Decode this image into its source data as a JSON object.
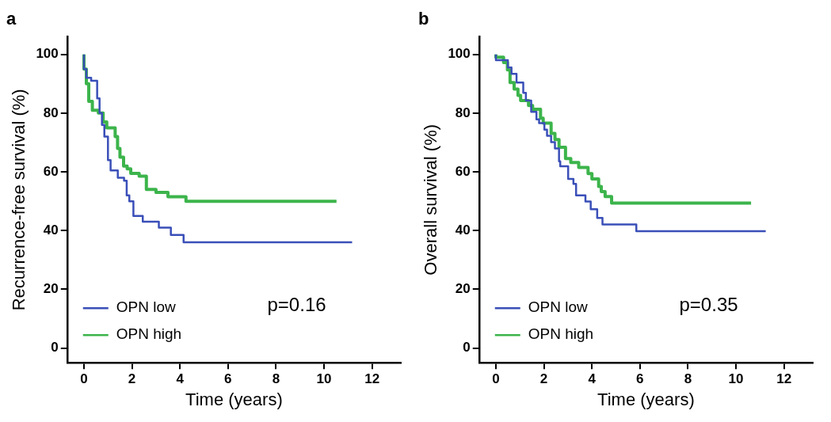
{
  "chart_data": [
    {
      "type": "step",
      "title": "a",
      "xlabel": "Time (years)",
      "ylabel": "Recurrence-free survival (%)",
      "xlim": [
        -0.7,
        13.2
      ],
      "ylim": [
        -5,
        106
      ],
      "xticks": [
        0,
        2,
        4,
        6,
        8,
        10,
        12
      ],
      "yticks": [
        0,
        20,
        40,
        60,
        80,
        100
      ],
      "grid": false,
      "legend": "bottom left",
      "marker": "none",
      "line_style": "solid",
      "annotations": [
        "p=0.16"
      ],
      "series": [
        {
          "name": "OPN low",
          "color": "#3a4fb8",
          "x": [
            0,
            0.1,
            0.3,
            0.55,
            0.65,
            0.75,
            0.85,
            1.0,
            1.11,
            1.41,
            1.67,
            1.78,
            1.89,
            2.06,
            2.45,
            3.12,
            3.62,
            4.15,
            5.94,
            11.17
          ],
          "values": [
            100,
            95,
            92,
            91,
            85,
            80,
            76,
            72,
            64,
            60.5,
            58,
            57,
            52,
            50,
            45,
            43,
            41,
            38.5,
            36,
            36
          ]
        },
        {
          "name": "OPN high",
          "color": "#3cb44b",
          "x": [
            0,
            0.1,
            0.2,
            0.35,
            0.6,
            0.8,
            0.95,
            1.3,
            1.4,
            1.5,
            1.65,
            1.8,
            1.95,
            2.3,
            2.6,
            3.0,
            3.5,
            4.25,
            4.6,
            10.52
          ],
          "values": [
            100,
            95,
            90,
            84,
            81,
            80,
            77,
            75,
            72,
            68,
            65,
            62,
            61,
            59.5,
            58.5,
            54,
            53,
            51.5,
            50,
            50
          ]
        }
      ]
    },
    {
      "type": "step",
      "title": "b",
      "xlabel": "Time (years)",
      "ylabel": "Overall survival (%)",
      "xlim": [
        -0.7,
        13.2
      ],
      "ylim": [
        -5,
        106
      ],
      "xticks": [
        0,
        2,
        4,
        6,
        8,
        10,
        12
      ],
      "yticks": [
        0,
        20,
        40,
        60,
        80,
        100
      ],
      "grid": false,
      "legend": "bottom left",
      "marker": "none",
      "line_style": "solid",
      "annotations": [
        "p=0.35"
      ],
      "series": [
        {
          "name": "OPN low",
          "color": "#3a4fb8",
          "x": [
            0,
            0.5,
            0.65,
            0.86,
            1.14,
            1.25,
            1.47,
            1.69,
            1.8,
            2.02,
            2.13,
            2.3,
            2.46,
            2.63,
            2.68,
            3.01,
            3.23,
            3.34,
            3.73,
            3.95,
            4.22,
            4.44,
            5.85,
            6.72,
            11.24
          ],
          "values": [
            100,
            98,
            95.5,
            93.4,
            90.4,
            86.9,
            84.3,
            80.4,
            77.9,
            76.6,
            74.4,
            72.3,
            70.1,
            68,
            63.6,
            61.9,
            57.6,
            55.9,
            52,
            49.9,
            47.3,
            44.3,
            42.1,
            39.8,
            39.8
          ]
        },
        {
          "name": "OPN high",
          "color": "#3cb44b",
          "x": [
            0,
            0.32,
            0.48,
            0.59,
            0.76,
            0.92,
            1.03,
            1.36,
            1.53,
            1.86,
            1.97,
            2.3,
            2.46,
            2.63,
            2.9,
            3.12,
            3.45,
            3.84,
            4.0,
            4.28,
            4.39,
            4.55,
            4.82,
            7.63,
            10.63
          ],
          "values": [
            100,
            99,
            97.2,
            94.7,
            90.4,
            88.2,
            86,
            84.3,
            82.6,
            81.3,
            78.3,
            76.6,
            73.1,
            71,
            68.4,
            64.5,
            63.2,
            61.5,
            59.4,
            57.6,
            55,
            53.3,
            51.6,
            49.4,
            49.4
          ]
        }
      ]
    }
  ]
}
